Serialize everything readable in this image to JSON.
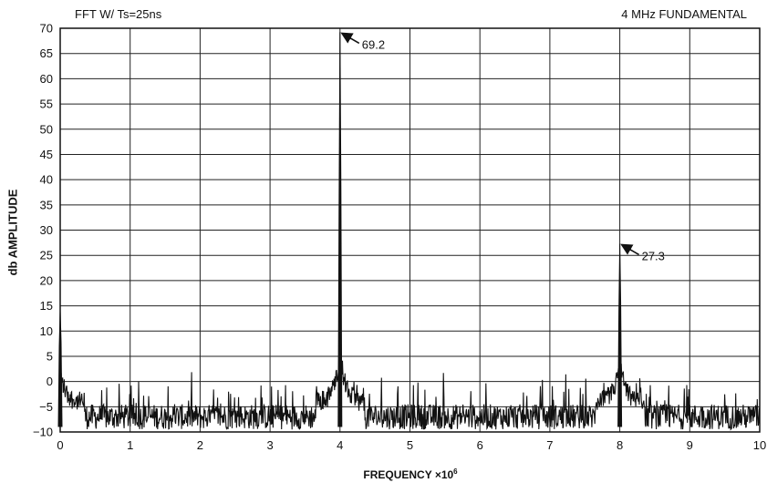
{
  "chart_data": {
    "type": "line",
    "title_left": "FFT W/ Ts=25ns",
    "title_right": "4 MHz FUNDAMENTAL",
    "xlabel": "FREQUENCY ×10",
    "xlabel_exponent": "6",
    "ylabel": "db AMPLITUDE",
    "xlim": [
      0,
      10
    ],
    "ylim": [
      -10,
      70
    ],
    "x_ticks": [
      "0",
      "1",
      "2",
      "3",
      "4",
      "5",
      "6",
      "7",
      "8",
      "9",
      "10"
    ],
    "y_ticks": [
      "70",
      "65",
      "60",
      "55",
      "50",
      "45",
      "40",
      "35",
      "30",
      "25",
      "20",
      "15",
      "10",
      "5",
      "0",
      "−5",
      "−10"
    ],
    "grid": true,
    "noise_floor": -7,
    "peaks": [
      {
        "x": 0.0,
        "y": 14
      },
      {
        "x": 4.0,
        "y": 69.2
      },
      {
        "x": 8.0,
        "y": 27.3
      }
    ],
    "annotations": [
      {
        "label": "69.2",
        "x": 4.0,
        "y": 69.2
      },
      {
        "label": "27.3",
        "x": 8.0,
        "y": 27.3
      }
    ],
    "line_color": "#111111"
  }
}
